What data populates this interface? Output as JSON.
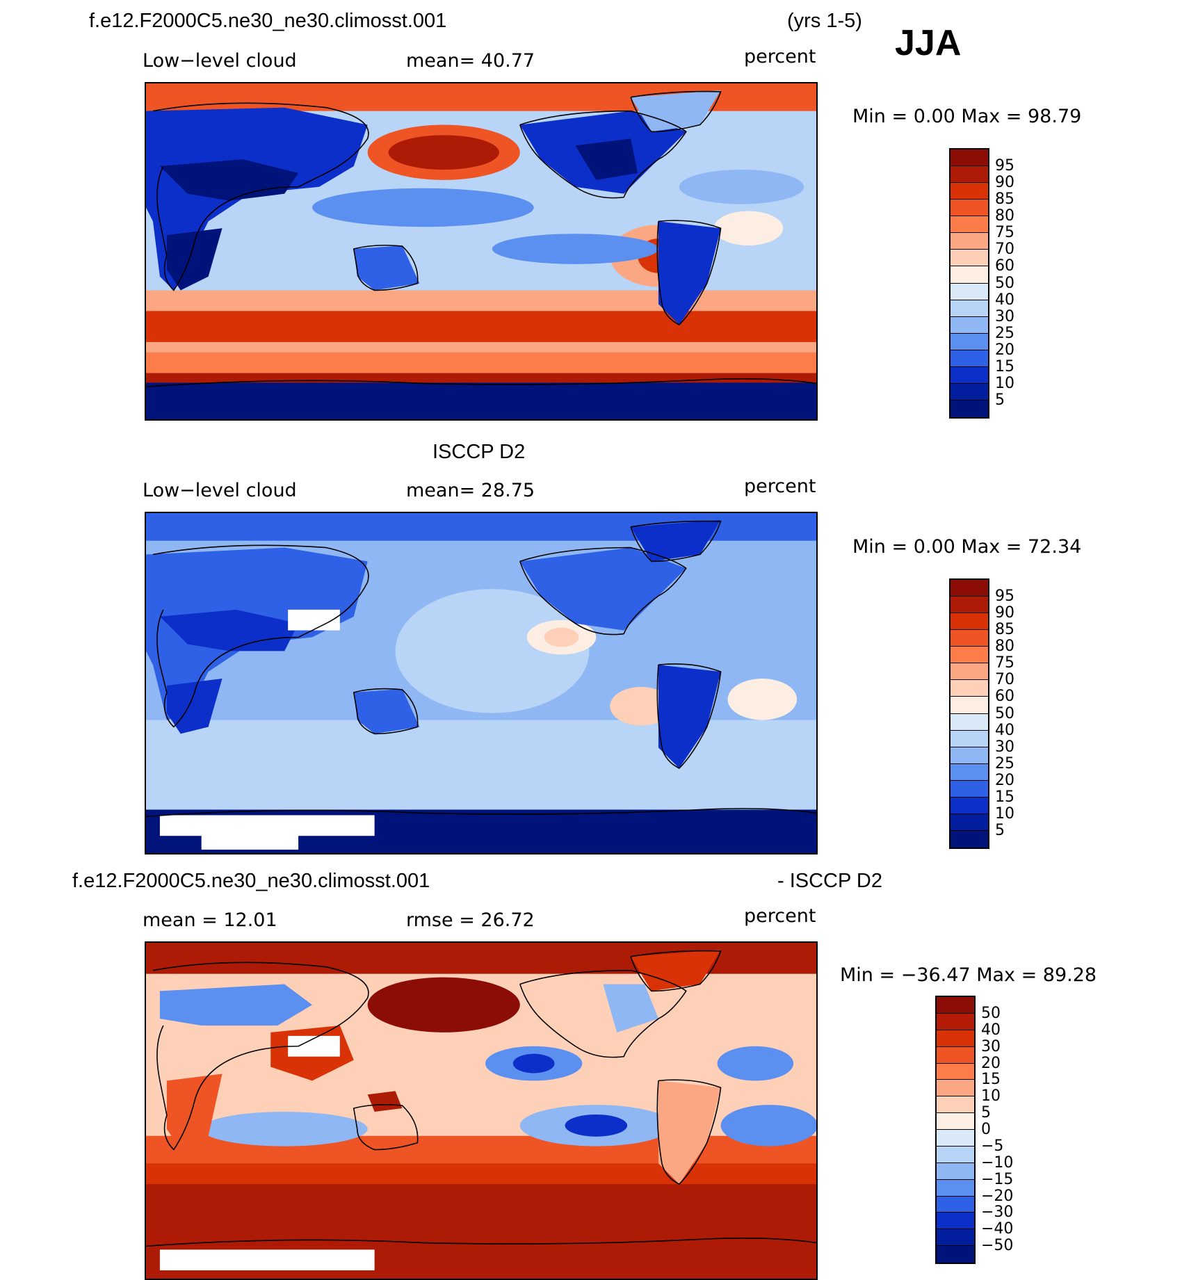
{
  "header": {
    "case_name": "f.e12.F2000C5.ne30_ne30.climosst.001",
    "years": "(yrs 1-5)",
    "season": "JJA"
  },
  "panels": [
    {
      "id": "model",
      "title": "",
      "variable": "Low−level cloud",
      "stat_text": "mean=   40.77",
      "units": "percent",
      "minmax": "Min  =    0.00  Max  =   98.79",
      "colorbar_labels": [
        "95",
        "90",
        "85",
        "80",
        "75",
        "70",
        "60",
        "50",
        "40",
        "30",
        "25",
        "20",
        "15",
        "10",
        "5"
      ]
    },
    {
      "id": "obs",
      "title": "ISCCP D2",
      "variable": "Low−level cloud",
      "stat_text": "mean=   28.75",
      "units": "percent",
      "minmax": "Min  =    0.00  Max  =   72.34",
      "colorbar_labels": [
        "95",
        "90",
        "85",
        "80",
        "75",
        "70",
        "60",
        "50",
        "40",
        "30",
        "25",
        "20",
        "15",
        "10",
        "5"
      ]
    },
    {
      "id": "diff",
      "title_left": "f.e12.F2000C5.ne30_ne30.climosst.001",
      "title_right": "- ISCCP D2",
      "variable": "mean  =    12.01",
      "stat_text": "rmse  =    26.72",
      "units": "percent",
      "minmax": "Min  = −36.47  Max  =   89.28",
      "colorbar_labels": [
        "50",
        "40",
        "30",
        "20",
        "15",
        "10",
        "5",
        "0",
        "−5",
        "−10",
        "−15",
        "−20",
        "−30",
        "−40",
        "−50"
      ]
    }
  ],
  "colors": {
    "abs_scale": [
      "#8b0d05",
      "#ad1b07",
      "#d93206",
      "#ee5424",
      "#fc7d49",
      "#fca784",
      "#fed0b8",
      "#fdeee3",
      "#dae9f7",
      "#b8d4f6",
      "#8fb7f4",
      "#5b8ff0",
      "#2e61e6",
      "#0d2fc9",
      "#001e9e",
      "#00137a"
    ],
    "diff_scale": [
      "#8b0d05",
      "#b31b07",
      "#d93206",
      "#ee5424",
      "#fc7d49",
      "#fca784",
      "#fed0b8",
      "#fdeee3",
      "#dae9f7",
      "#b8d4f6",
      "#8fb7f4",
      "#5b8ff0",
      "#2e61e6",
      "#0d2fc9",
      "#001e9e",
      "#00137a"
    ],
    "coastline": "#000000"
  }
}
